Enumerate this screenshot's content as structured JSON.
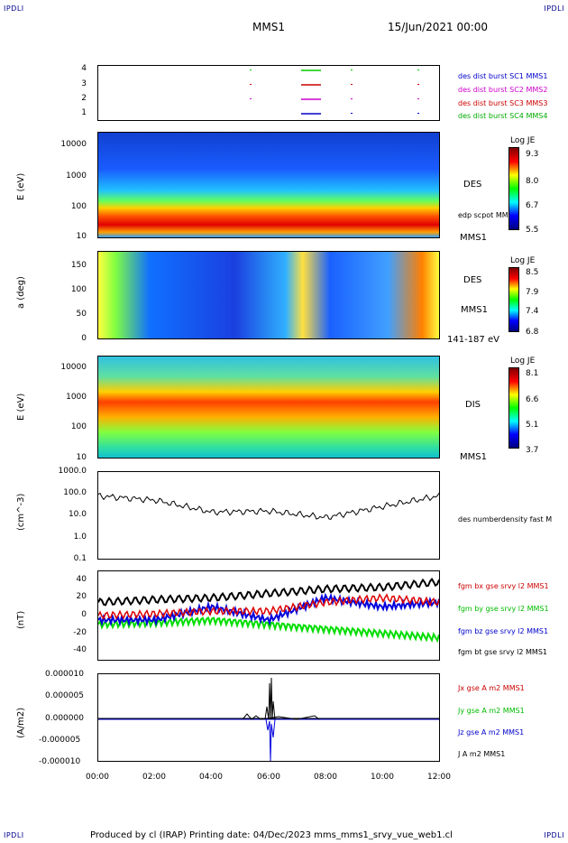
{
  "corners": {
    "tl": "IPDLI",
    "tr": "IPDLI",
    "bl": "IPDLI",
    "br": "IPDLI"
  },
  "header": {
    "spacecraft": "MMS1",
    "date": "15/Jun/2021 00:00"
  },
  "footer": {
    "text": "Produced by cl (IRAP)   Printing date: 04/Dec/2023   mms_mms1_srvy_vue_web1.cl"
  },
  "panel1": {
    "yticks": [
      "4",
      "3",
      "2",
      "1"
    ],
    "labels": [
      {
        "text": "des dist burst SC1 MMS1",
        "color": "#0000cc"
      },
      {
        "text": "des dist burst SC2 MMS2",
        "color": "#cc00cc"
      },
      {
        "text": "des dist burst SC3 MMS3",
        "color": "#cc0000"
      },
      {
        "text": "des dist burst SC4 MMS4",
        "color": "#00aa00"
      }
    ]
  },
  "panel2": {
    "ylabel": "E (eV)",
    "yticks": [
      "10000",
      "1000",
      "100",
      "10"
    ],
    "right_top": "DES",
    "right_mid": "edp scpot MMS1",
    "right_bot": "MMS1",
    "cbar_title": "Log JE",
    "cbar_ticks": [
      "9.3",
      "8.0",
      "6.7",
      "5.5"
    ]
  },
  "panel3": {
    "ylabel": "a (deg)",
    "yticks": [
      "150",
      "100",
      "50",
      "0"
    ],
    "right_top": "DES",
    "right_mid": "MMS1",
    "right_bot": "141-187 eV",
    "cbar_title": "Log JE",
    "cbar_ticks": [
      "8.5",
      "7.9",
      "7.4",
      "6.8"
    ]
  },
  "panel4": {
    "ylabel": "E (eV)",
    "yticks": [
      "10000",
      "1000",
      "100",
      "10"
    ],
    "right_top": "DIS",
    "right_bot": "MMS1",
    "cbar_title": "Log JE",
    "cbar_ticks": [
      "8.1",
      "6.6",
      "5.1",
      "3.7"
    ]
  },
  "panel5": {
    "ylabel": "(cm^-3)",
    "yticks": [
      "1000.0",
      "100.0",
      "10.0",
      "1.0",
      "0.1"
    ],
    "label": "des numberdensity fast M"
  },
  "panel6": {
    "ylabel": "(nT)",
    "yticks": [
      "40",
      "20",
      "0",
      "-20",
      "-40"
    ],
    "labels": [
      {
        "text": "fgm bx gse srvy l2 MMS1",
        "color": "#cc0000"
      },
      {
        "text": "fgm by gse srvy l2 MMS1",
        "color": "#00bb00"
      },
      {
        "text": "fgm bz gse srvy l2 MMS1",
        "color": "#0000cc"
      },
      {
        "text": "fgm bt gse srvy l2 MMS1",
        "color": "#000000"
      }
    ]
  },
  "panel7": {
    "ylabel": "(A/m2)",
    "yticks": [
      "0.000010",
      "0.000005",
      "0.000000",
      "-0.000005",
      "-0.000010"
    ],
    "labels": [
      {
        "text": "Jx gse A m2 MMS1",
        "color": "#cc0000"
      },
      {
        "text": "Jy gse A m2 MMS1",
        "color": "#00bb00"
      },
      {
        "text": "Jz gse A m2 MMS1",
        "color": "#0000cc"
      },
      {
        "text": "J A m2 MMS1",
        "color": "#000000"
      }
    ]
  },
  "xticks": [
    "00:00",
    "02:00",
    "04:00",
    "06:00",
    "08:00",
    "10:00",
    "12:00"
  ],
  "chart_data": {
    "type": "line",
    "x": [
      "00:00",
      "02:00",
      "04:00",
      "06:00",
      "08:00",
      "10:00",
      "12:00"
    ],
    "density_log10": [
      1.9,
      1.7,
      1.15,
      1.2,
      0.9,
      1.4,
      1.9
    ],
    "series": [
      {
        "name": "fgm bt gse srvy l2 MMS1",
        "values": [
          15,
          18,
          20,
          25,
          30,
          32,
          38
        ]
      },
      {
        "name": "fgm bx gse srvy l2 MMS1",
        "values": [
          0,
          2,
          5,
          5,
          15,
          20,
          15
        ]
      },
      {
        "name": "fgm by gse srvy l2 MMS1",
        "values": [
          -10,
          -8,
          -5,
          -10,
          -15,
          -20,
          -25
        ]
      },
      {
        "name": "fgm bz gse srvy l2 MMS1",
        "values": [
          -5,
          -5,
          10,
          -5,
          20,
          10,
          15
        ]
      }
    ],
    "ylim_b": [
      -50,
      50
    ]
  }
}
